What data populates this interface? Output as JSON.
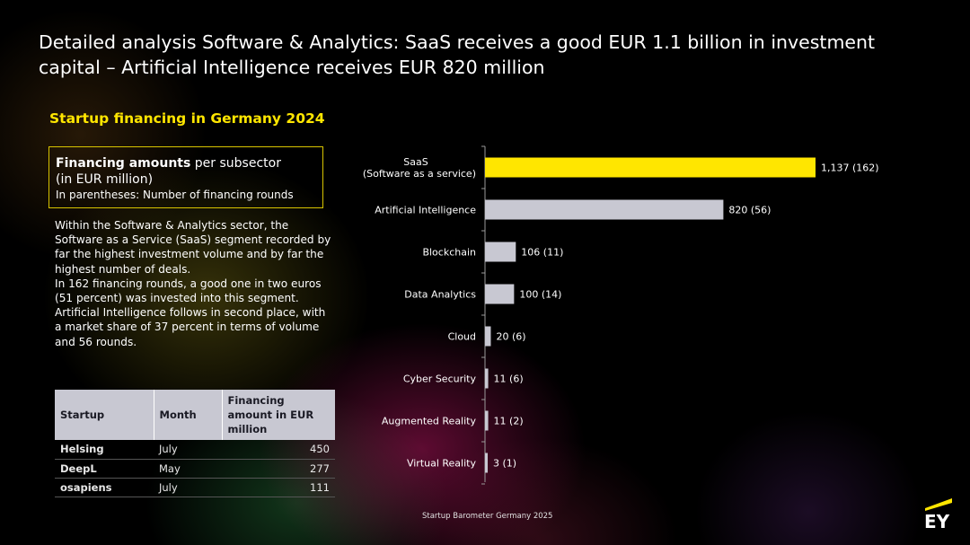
{
  "title": "Detailed analysis Software & Analytics: SaaS receives a good EUR 1.1 billion in investment capital – Artificial Intelligence receives EUR 820 million",
  "subtitle": "Startup financing in Germany 2024",
  "info_box": {
    "bold": "Financing amounts",
    "rest": " per subsector",
    "line2": "(in EUR million)",
    "line3": "In parentheses: Number of financing rounds"
  },
  "description": [
    "Within the Software & Analytics sector, the Software as a Service (SaaS) segment recorded by far the highest investment volume and by far the highest number of deals.",
    "In 162 financing rounds, a good one in two euros (51 percent) was invested into this segment.",
    "Artificial Intelligence follows in second place, with a market share of 37 percent in terms of volume and 56 rounds."
  ],
  "table": {
    "headers": [
      "Startup",
      "Month",
      "Financing amount in EUR million"
    ],
    "rows": [
      [
        "Helsing",
        "July",
        "450"
      ],
      [
        "DeepL",
        "May",
        "277"
      ],
      [
        "osapiens",
        "July",
        "111"
      ]
    ]
  },
  "chart_data": {
    "type": "bar",
    "orientation": "horizontal",
    "categories": [
      [
        "SaaS",
        "(Software as a service)"
      ],
      [
        "Artificial Intelligence"
      ],
      [
        "Blockchain"
      ],
      [
        "Data Analytics"
      ],
      [
        "Cloud"
      ],
      [
        "Cyber Security"
      ],
      [
        "Augmented Reality"
      ],
      [
        "Virtual Reality"
      ]
    ],
    "values": [
      1137,
      820,
      106,
      100,
      20,
      11,
      11,
      3
    ],
    "rounds": [
      162,
      56,
      11,
      14,
      6,
      6,
      2,
      1
    ],
    "data_labels": [
      "1,137 (162)",
      "820 (56)",
      "106 (11)",
      "100 (14)",
      "20 (6)",
      "11 (6)",
      "11 (2)",
      "3 (1)"
    ],
    "highlight_index": 0,
    "colors": {
      "highlight": "#ffe600",
      "bar": "#c8c8d2",
      "axis": "#9a9a9a"
    },
    "xlim": [
      0,
      1137
    ],
    "grid": false
  },
  "source": "Startup Barometer Germany 2025",
  "logo": {
    "text": "EY",
    "accent": "#ffe600"
  }
}
